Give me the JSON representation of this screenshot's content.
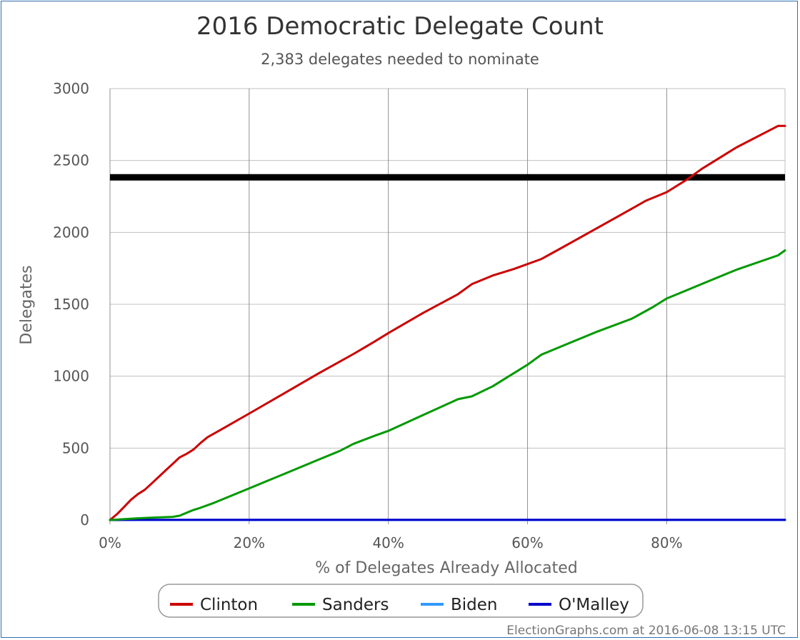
{
  "chart_data": {
    "type": "line",
    "title": "2016 Democratic Delegate Count",
    "subtitle": "2,383 delegates needed to nominate",
    "xlabel": "% of Delegates Already Allocated",
    "ylabel": "Delegates",
    "xlim": [
      0,
      97
    ],
    "ylim": [
      0,
      3000
    ],
    "x_ticks": [
      "0%",
      "20%",
      "40%",
      "60%",
      "80%"
    ],
    "x_tick_values": [
      0,
      20,
      40,
      60,
      80
    ],
    "y_ticks": [
      "0",
      "500",
      "1000",
      "1500",
      "2000",
      "2500",
      "3000"
    ],
    "y_tick_values": [
      0,
      500,
      1000,
      1500,
      2000,
      2500,
      3000
    ],
    "grid": true,
    "legend_position": "bottom",
    "threshold": {
      "value": 2383,
      "color": "#000000"
    },
    "series": [
      {
        "name": "Clinton",
        "color": "#cc0000",
        "points": [
          [
            0,
            0
          ],
          [
            1,
            40
          ],
          [
            2,
            90
          ],
          [
            3,
            140
          ],
          [
            4,
            180
          ],
          [
            5,
            210
          ],
          [
            6,
            255
          ],
          [
            7,
            300
          ],
          [
            8,
            345
          ],
          [
            9,
            390
          ],
          [
            10,
            435
          ],
          [
            11,
            460
          ],
          [
            12,
            490
          ],
          [
            13,
            535
          ],
          [
            14,
            575
          ],
          [
            16,
            630
          ],
          [
            20,
            740
          ],
          [
            25,
            880
          ],
          [
            30,
            1020
          ],
          [
            35,
            1155
          ],
          [
            38,
            1240
          ],
          [
            40,
            1300
          ],
          [
            45,
            1440
          ],
          [
            50,
            1570
          ],
          [
            52,
            1640
          ],
          [
            55,
            1700
          ],
          [
            58,
            1745
          ],
          [
            62,
            1815
          ],
          [
            65,
            1895
          ],
          [
            70,
            2030
          ],
          [
            75,
            2165
          ],
          [
            77,
            2220
          ],
          [
            80,
            2280
          ],
          [
            83,
            2370
          ],
          [
            85,
            2440
          ],
          [
            90,
            2590
          ],
          [
            96,
            2740
          ],
          [
            97,
            2740
          ]
        ]
      },
      {
        "name": "Sanders",
        "color": "#009900",
        "points": [
          [
            0,
            0
          ],
          [
            4,
            12
          ],
          [
            6,
            16
          ],
          [
            9,
            22
          ],
          [
            10,
            30
          ],
          [
            11,
            50
          ],
          [
            12,
            70
          ],
          [
            13,
            85
          ],
          [
            15,
            120
          ],
          [
            20,
            220
          ],
          [
            25,
            320
          ],
          [
            30,
            420
          ],
          [
            33,
            480
          ],
          [
            35,
            530
          ],
          [
            38,
            585
          ],
          [
            40,
            620
          ],
          [
            45,
            730
          ],
          [
            50,
            840
          ],
          [
            52,
            860
          ],
          [
            55,
            930
          ],
          [
            57,
            990
          ],
          [
            60,
            1080
          ],
          [
            62,
            1150
          ],
          [
            65,
            1210
          ],
          [
            70,
            1310
          ],
          [
            75,
            1400
          ],
          [
            78,
            1480
          ],
          [
            80,
            1540
          ],
          [
            82,
            1580
          ],
          [
            85,
            1640
          ],
          [
            90,
            1740
          ],
          [
            96,
            1840
          ],
          [
            97,
            1875
          ]
        ]
      },
      {
        "name": "Biden",
        "color": "#3399ff",
        "points": [
          [
            0,
            0
          ],
          [
            97,
            0
          ]
        ]
      },
      {
        "name": "O'Malley",
        "color": "#0000cc",
        "points": [
          [
            0,
            0
          ],
          [
            4,
            1
          ],
          [
            8,
            1
          ],
          [
            97,
            1
          ]
        ]
      }
    ],
    "credit": "ElectionGraphs.com at 2016-06-08 13:15 UTC"
  }
}
